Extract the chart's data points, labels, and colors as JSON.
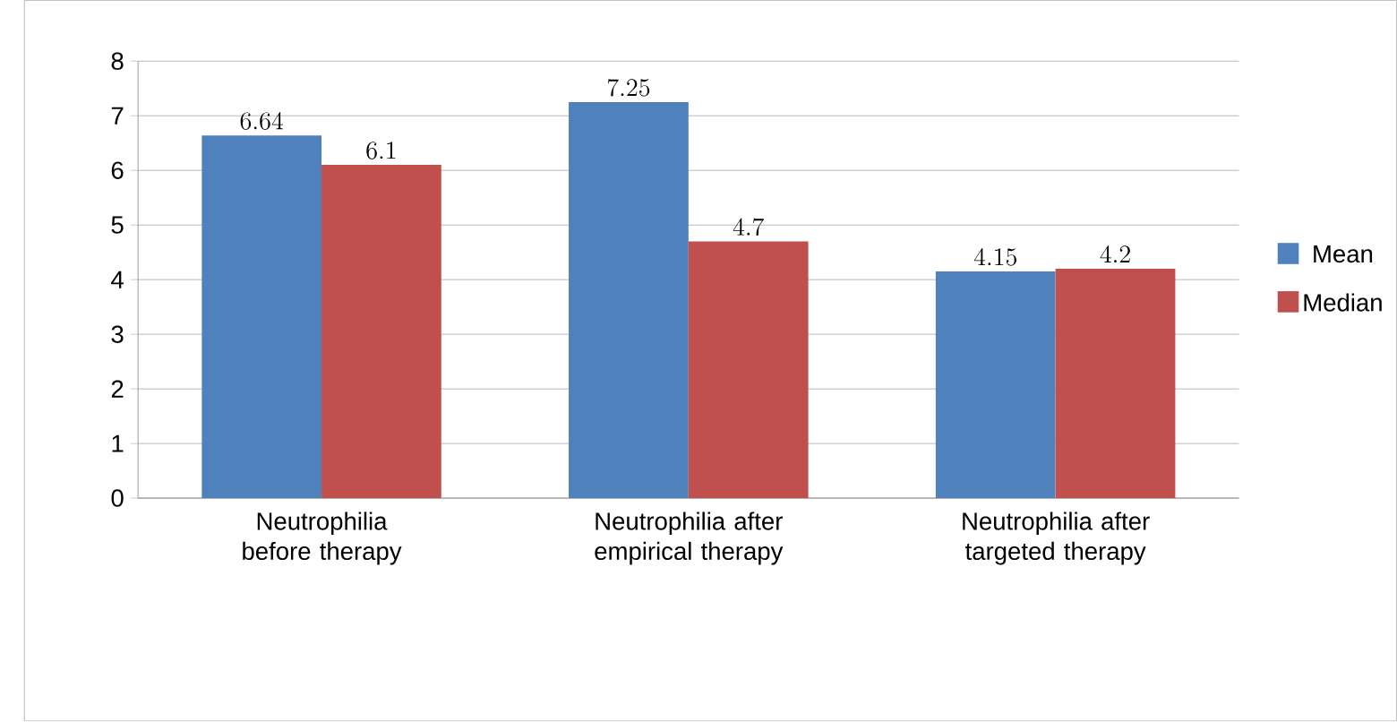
{
  "chart_data": {
    "type": "bar",
    "categories": [
      "Neutrophilia before therapy",
      "Neutrophilia after empirical therapy",
      "Neutrophilia after targeted therapy"
    ],
    "series": [
      {
        "name": "Mean",
        "color": "#4f81bd",
        "values": [
          6.64,
          7.25,
          4.15
        ]
      },
      {
        "name": "Median",
        "color": "#c0504d",
        "values": [
          6.1,
          4.7,
          4.2
        ]
      }
    ],
    "ylim": [
      0,
      8
    ],
    "yticks": [
      0,
      1,
      2,
      3,
      4,
      5,
      6,
      7,
      8
    ],
    "grid": "y",
    "legend": "right",
    "data_labels": true
  }
}
